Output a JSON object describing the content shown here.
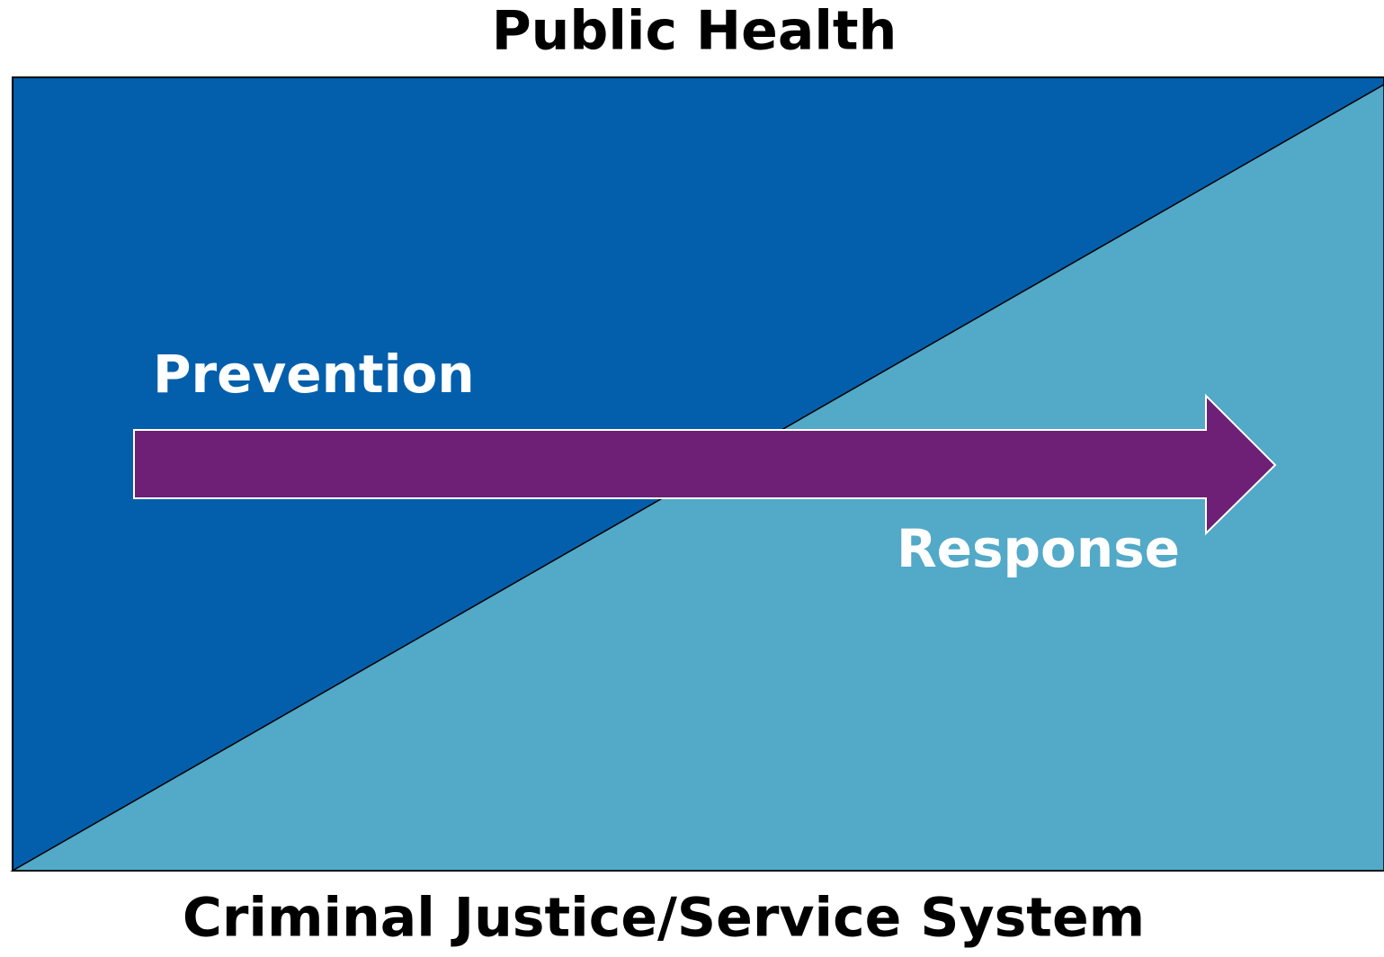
{
  "title": "Public Health",
  "labels": {
    "left": "Prevention",
    "right": "Response"
  },
  "footer": "Criminal Justice/Service System"
}
